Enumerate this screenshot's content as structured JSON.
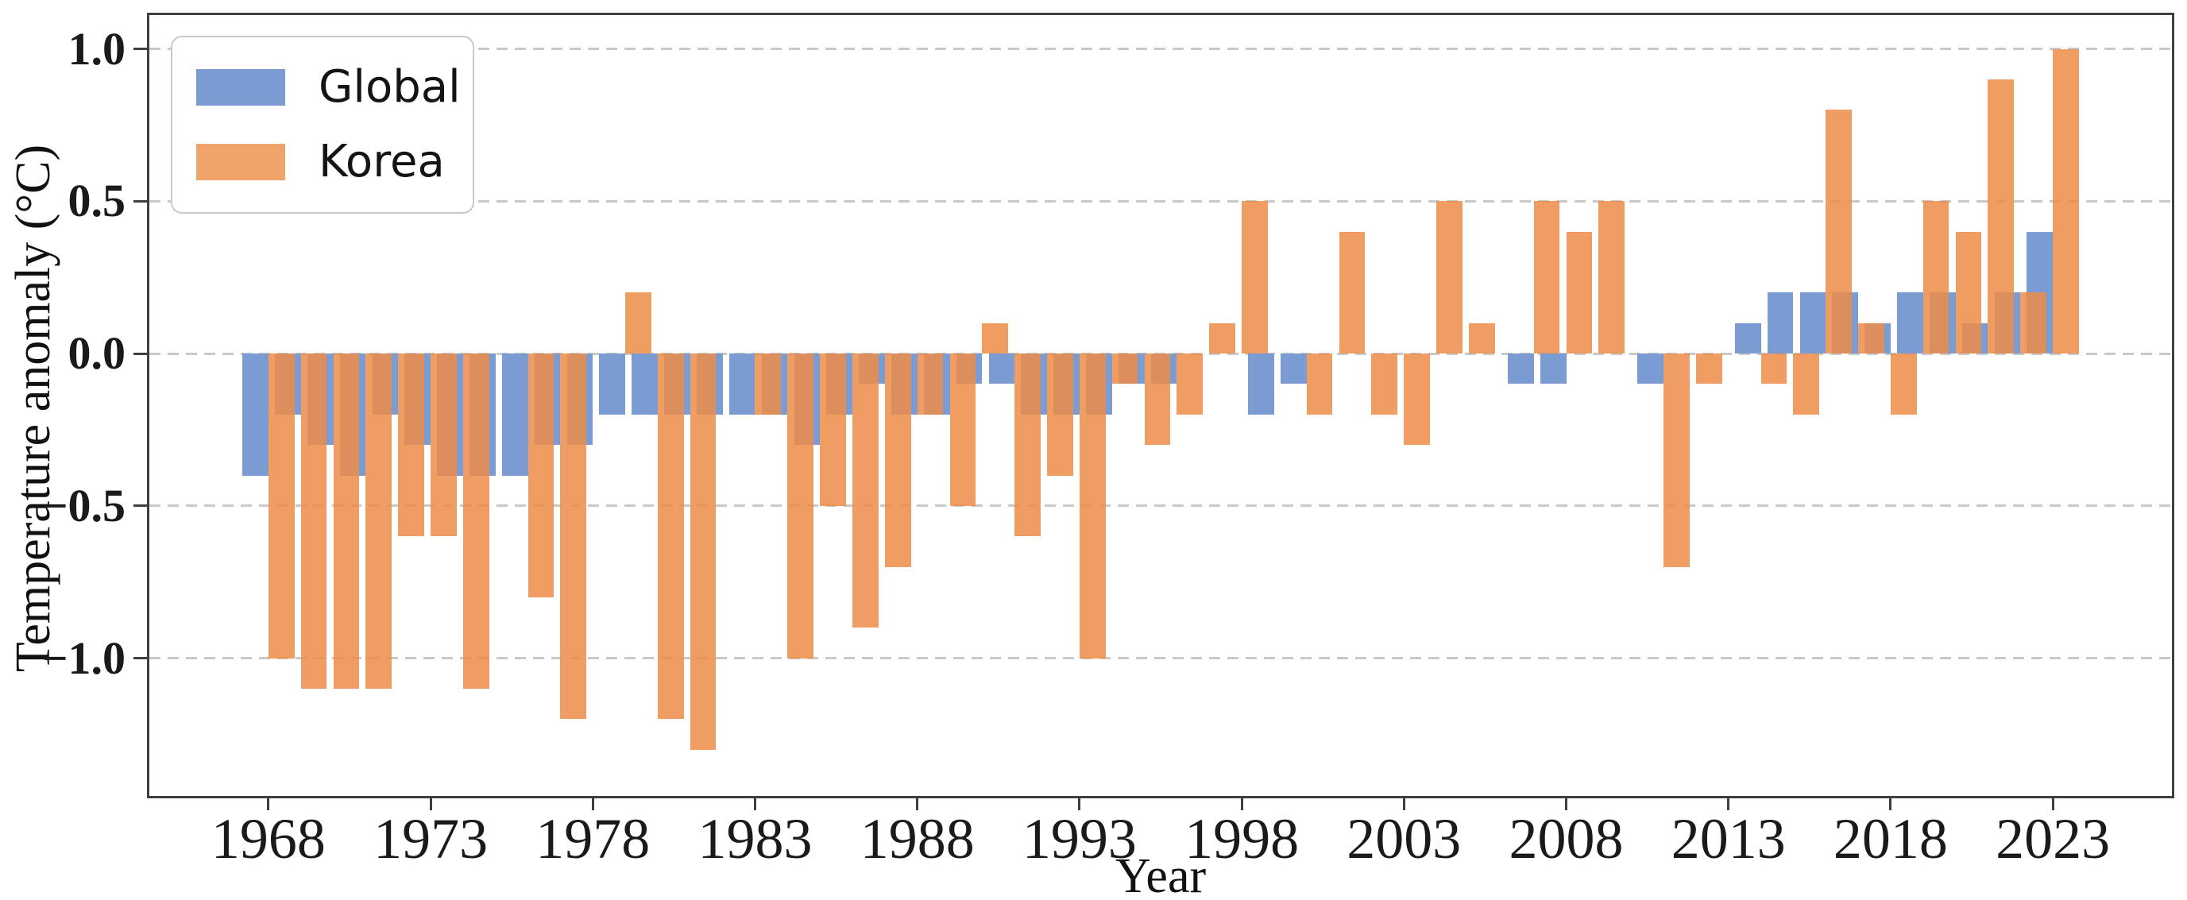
{
  "chart_data": {
    "type": "bar",
    "title": "",
    "xlabel": "Year",
    "ylabel": "Temperature anomaly (°C)",
    "legend_position": "upper left",
    "grid": "horizontal dashed",
    "categories": [
      1968,
      1969,
      1970,
      1971,
      1972,
      1973,
      1974,
      1975,
      1976,
      1977,
      1978,
      1979,
      1980,
      1981,
      1982,
      1983,
      1984,
      1985,
      1986,
      1987,
      1988,
      1989,
      1990,
      1991,
      1992,
      1993,
      1994,
      1995,
      1996,
      1997,
      1998,
      1999,
      2000,
      2001,
      2002,
      2003,
      2004,
      2005,
      2006,
      2007,
      2008,
      2009,
      2010,
      2011,
      2012,
      2013,
      2014,
      2015,
      2016,
      2017,
      2018,
      2019,
      2020,
      2021,
      2022,
      2023
    ],
    "series": [
      {
        "name": "Global",
        "color": "#7B9CD2",
        "values": [
          -0.4,
          -0.2,
          -0.3,
          -0.4,
          -0.2,
          -0.3,
          -0.4,
          -0.4,
          -0.4,
          -0.3,
          -0.3,
          -0.2,
          -0.2,
          -0.2,
          -0.2,
          -0.2,
          -0.2,
          -0.3,
          -0.2,
          -0.1,
          -0.2,
          -0.2,
          -0.1,
          -0.1,
          -0.2,
          -0.2,
          -0.2,
          -0.1,
          -0.1,
          0,
          0,
          -0.2,
          -0.1,
          0,
          0,
          0,
          0,
          0,
          0,
          -0.1,
          -0.1,
          0,
          0,
          -0.1,
          0,
          0,
          0.1,
          0.2,
          0.2,
          0.2,
          0.1,
          0.2,
          0.2,
          0.1,
          0.2,
          0.4
        ]
      },
      {
        "name": "Korea",
        "color": "rgba(237,140,73,0.85)",
        "swatch_color": "#F0A46A",
        "values": [
          -1.0,
          -1.1,
          -1.1,
          -1.1,
          -0.6,
          -0.6,
          -1.1,
          0,
          -0.8,
          -1.2,
          0,
          0.2,
          -1.2,
          -1.3,
          0,
          -0.2,
          -1.0,
          -0.5,
          -0.9,
          -0.7,
          -0.2,
          -0.5,
          0.1,
          -0.6,
          -0.4,
          -1.0,
          -0.1,
          -0.3,
          -0.2,
          0.1,
          0.5,
          0,
          -0.2,
          0.4,
          -0.2,
          -0.3,
          0.5,
          0.1,
          0,
          0.5,
          0.4,
          0.5,
          0,
          -0.7,
          -0.1,
          0,
          -0.1,
          -0.2,
          0.8,
          0.1,
          -0.2,
          0.5,
          0.4,
          0.9,
          0.2,
          1.0
        ]
      }
    ],
    "xticks": [
      1968,
      1973,
      1978,
      1983,
      1988,
      1993,
      1998,
      2003,
      2008,
      2013,
      2018,
      2023
    ],
    "yticks": [
      {
        "label": "1.0",
        "value": 1.0
      },
      {
        "label": "0.5",
        "value": 0.5
      },
      {
        "label": "0.0",
        "value": 0.0
      },
      {
        "label": "−0.5",
        "value": -0.5
      },
      {
        "label": "−1.0",
        "value": -1.0
      }
    ],
    "ylim": [
      -1.452,
      1.111
    ],
    "xlim": [
      1964.33,
      2026.67
    ],
    "bar_width_years": 0.8,
    "colors": {
      "global_bar": "#7B9CD2",
      "korea_bar": "rgba(237,140,73,0.85)",
      "overlap_tint": "#C98561",
      "spine": "#3F3F3F",
      "gridline": "#C9C9C9",
      "text": "#1A1A1A"
    }
  }
}
